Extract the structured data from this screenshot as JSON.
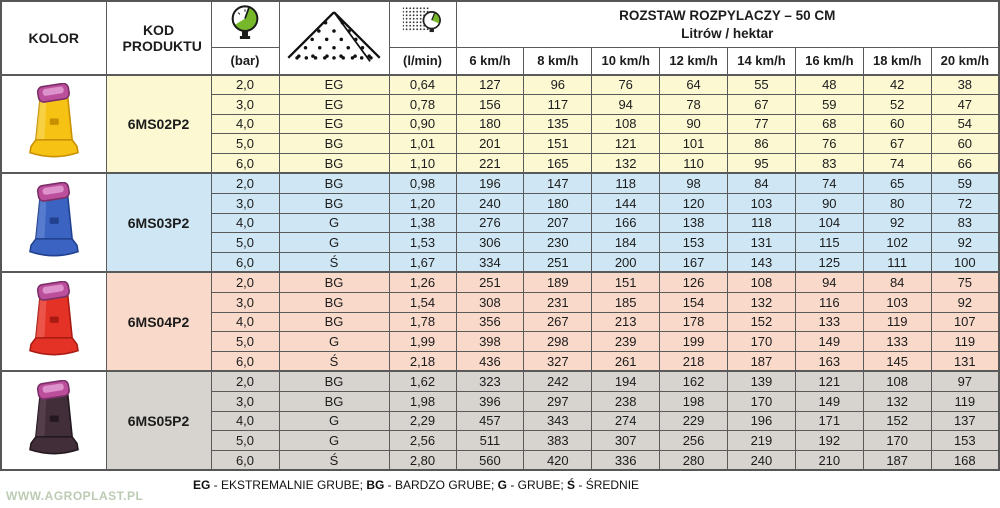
{
  "header": {
    "kolor": "KOLOR",
    "kod_produktu": "KOD PRODUKTU",
    "bar": "(bar)",
    "lmin": "(l/min)",
    "rozstaw_line1": "ROZSTAW ROZPYLACZY – 50 CM",
    "rozstaw_line2": "Litrów / hektar",
    "speeds": [
      "6 km/h",
      "8 km/h",
      "10 km/h",
      "12 km/h",
      "14 km/h",
      "16 km/h",
      "18 km/h",
      "20 km/h"
    ],
    "icons": {
      "bar_icon": "pressure-gauge-icon",
      "spray_icon": "spray-cone-icon",
      "lmin_icon": "flow-meter-icon"
    }
  },
  "colors": {
    "accent_green": "#3FA93C",
    "gauge_green": "#76B82A",
    "border": "#5a5a5a",
    "cap": "#BB4F9C",
    "cap_dark": "#7C2F68",
    "cap_light": "#DE92CB"
  },
  "groups": [
    {
      "code": "6MS02P2",
      "row_bg": "#FBF8D2",
      "nozzle": {
        "body": "#F6C315",
        "shade": "#C98F00",
        "light": "#FBE27A"
      },
      "rows": [
        {
          "bar": "2,0",
          "grade": "EG",
          "lmin": "0,64",
          "values": [
            127,
            96,
            76,
            64,
            55,
            48,
            42,
            38
          ]
        },
        {
          "bar": "3,0",
          "grade": "EG",
          "lmin": "0,78",
          "values": [
            156,
            117,
            94,
            78,
            67,
            59,
            52,
            47
          ]
        },
        {
          "bar": "4,0",
          "grade": "EG",
          "lmin": "0,90",
          "values": [
            180,
            135,
            108,
            90,
            77,
            68,
            60,
            54
          ]
        },
        {
          "bar": "5,0",
          "grade": "BG",
          "lmin": "1,01",
          "values": [
            201,
            151,
            121,
            101,
            86,
            76,
            67,
            60
          ]
        },
        {
          "bar": "6,0",
          "grade": "BG",
          "lmin": "1,10",
          "values": [
            221,
            165,
            132,
            110,
            95,
            83,
            74,
            66
          ]
        }
      ]
    },
    {
      "code": "6MS03P2",
      "row_bg": "#CFE7F5",
      "nozzle": {
        "body": "#3A63C2",
        "shade": "#22418F",
        "light": "#7C9BE0"
      },
      "rows": [
        {
          "bar": "2,0",
          "grade": "BG",
          "lmin": "0,98",
          "values": [
            196,
            147,
            118,
            98,
            84,
            74,
            65,
            59
          ]
        },
        {
          "bar": "3,0",
          "grade": "BG",
          "lmin": "1,20",
          "values": [
            240,
            180,
            144,
            120,
            103,
            90,
            80,
            72
          ]
        },
        {
          "bar": "4,0",
          "grade": "G",
          "lmin": "1,38",
          "values": [
            276,
            207,
            166,
            138,
            118,
            104,
            92,
            83
          ]
        },
        {
          "bar": "5,0",
          "grade": "G",
          "lmin": "1,53",
          "values": [
            306,
            230,
            184,
            153,
            131,
            115,
            102,
            92
          ]
        },
        {
          "bar": "6,0",
          "grade": "Ś",
          "lmin": "1,67",
          "values": [
            334,
            251,
            200,
            167,
            143,
            125,
            111,
            100
          ]
        }
      ]
    },
    {
      "code": "6MS04P2",
      "row_bg": "#F9D9CA",
      "nozzle": {
        "body": "#E53227",
        "shade": "#A91B12",
        "light": "#F47F76"
      },
      "rows": [
        {
          "bar": "2,0",
          "grade": "BG",
          "lmin": "1,26",
          "values": [
            251,
            189,
            151,
            126,
            108,
            94,
            84,
            75
          ]
        },
        {
          "bar": "3,0",
          "grade": "BG",
          "lmin": "1,54",
          "values": [
            308,
            231,
            185,
            154,
            132,
            116,
            103,
            92
          ]
        },
        {
          "bar": "4,0",
          "grade": "BG",
          "lmin": "1,78",
          "values": [
            356,
            267,
            213,
            178,
            152,
            133,
            119,
            107
          ]
        },
        {
          "bar": "5,0",
          "grade": "G",
          "lmin": "1,99",
          "values": [
            398,
            298,
            239,
            199,
            170,
            149,
            133,
            119
          ]
        },
        {
          "bar": "6,0",
          "grade": "Ś",
          "lmin": "2,18",
          "values": [
            436,
            327,
            261,
            218,
            187,
            163,
            145,
            131
          ]
        }
      ]
    },
    {
      "code": "6MS05P2",
      "row_bg": "#D7D4CF",
      "nozzle": {
        "body": "#412E38",
        "shade": "#241820",
        "light": "#6B5361"
      },
      "rows": [
        {
          "bar": "2,0",
          "grade": "BG",
          "lmin": "1,62",
          "values": [
            323,
            242,
            194,
            162,
            139,
            121,
            108,
            97
          ]
        },
        {
          "bar": "3,0",
          "grade": "BG",
          "lmin": "1,98",
          "values": [
            396,
            297,
            238,
            198,
            170,
            149,
            132,
            119
          ]
        },
        {
          "bar": "4,0",
          "grade": "G",
          "lmin": "2,29",
          "values": [
            457,
            343,
            274,
            229,
            196,
            171,
            152,
            137
          ]
        },
        {
          "bar": "5,0",
          "grade": "G",
          "lmin": "2,56",
          "values": [
            511,
            383,
            307,
            256,
            219,
            192,
            170,
            153
          ]
        },
        {
          "bar": "6,0",
          "grade": "Ś",
          "lmin": "2,80",
          "values": [
            560,
            420,
            336,
            280,
            240,
            210,
            187,
            168
          ]
        }
      ]
    }
  ],
  "footer": {
    "legend": [
      {
        "abbr": "EG",
        "desc": "EKSTREMALNIE GRUBE"
      },
      {
        "abbr": "BG",
        "desc": "BARDZO GRUBE"
      },
      {
        "abbr": "G",
        "desc": "GRUBE"
      },
      {
        "abbr": "Ś",
        "desc": "ŚREDNIE"
      }
    ],
    "watermark": "WWW.AGROPLAST.PL"
  }
}
